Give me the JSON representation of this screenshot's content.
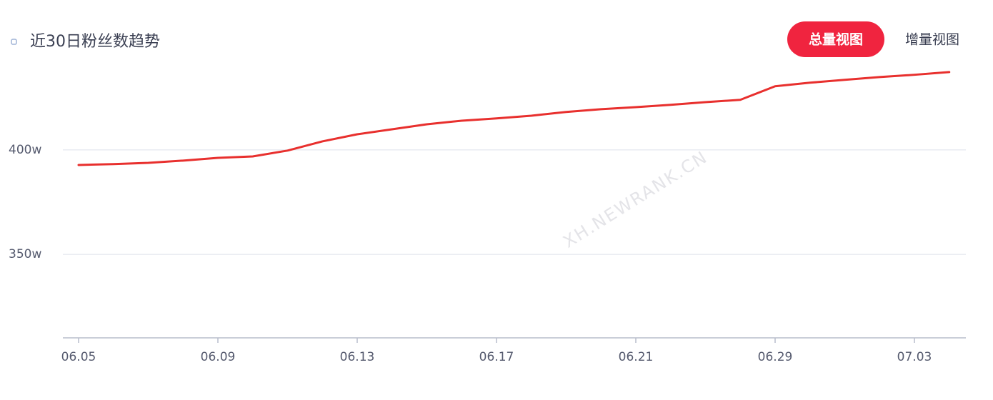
{
  "chart_data": {
    "type": "line",
    "title": "近30日粉丝数趋势",
    "categories": [
      "06.05",
      null,
      null,
      null,
      "06.09",
      null,
      null,
      null,
      "06.13",
      null,
      null,
      null,
      "06.17",
      null,
      null,
      null,
      "06.21",
      null,
      null,
      null,
      "06.29",
      null,
      null,
      null,
      "07.03",
      null
    ],
    "values": [
      392.8,
      393.2,
      393.8,
      394.9,
      396.2,
      396.9,
      399.7,
      404.1,
      407.5,
      409.9,
      412.3,
      414.0,
      415.1,
      416.4,
      418.2,
      419.5,
      420.5,
      421.6,
      422.9,
      424.0,
      430.5,
      432.2,
      433.6,
      434.9,
      436.0,
      437.3
    ],
    "color": "#e8302e",
    "ylim": [
      310,
      440
    ],
    "yticks": [
      {
        "value": 350,
        "label": "350w"
      },
      {
        "value": 400,
        "label": "400w"
      }
    ],
    "grid": true
  },
  "view_buttons": {
    "active": "总量视图",
    "other": "增量视图"
  },
  "watermark": "XH.NEWRANK.CN"
}
